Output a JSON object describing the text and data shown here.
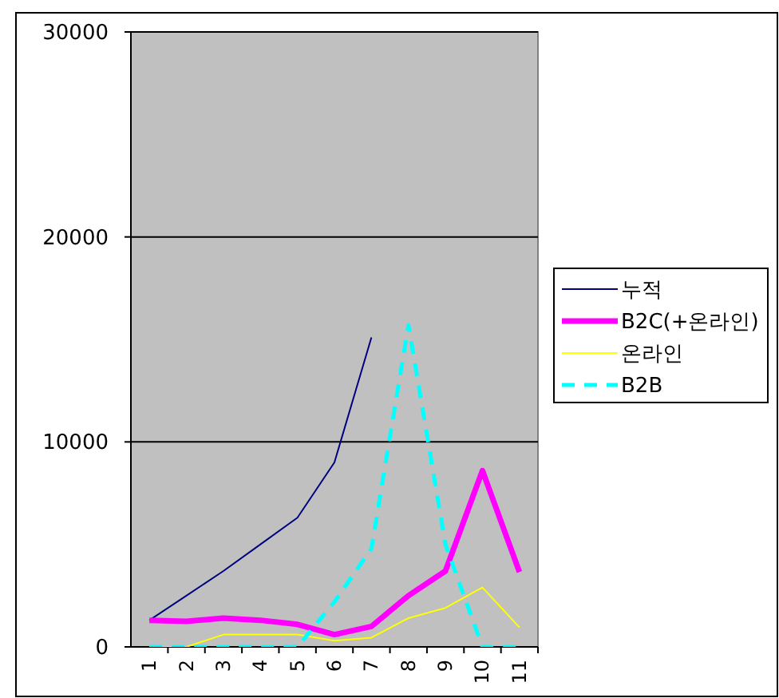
{
  "chart_data": {
    "type": "line",
    "categories": [
      "1",
      "2",
      "3",
      "4",
      "5",
      "6",
      "7",
      "8",
      "9",
      "10",
      "11"
    ],
    "series": [
      {
        "name": "누적",
        "color": "#000080",
        "values": [
          1300,
          2500,
          3700,
          5000,
          6300,
          9000,
          15100,
          null,
          null,
          null,
          null
        ]
      },
      {
        "name": "B2C(+온라인)",
        "color": "#ff00ff",
        "values": [
          1300,
          1250,
          1400,
          1300,
          1100,
          600,
          1000,
          2500,
          3700,
          8600,
          3650
        ]
      },
      {
        "name": "온라인",
        "color": "#ffff00",
        "values": [
          0,
          0,
          600,
          600,
          600,
          300,
          450,
          1400,
          1900,
          2900,
          950
        ]
      },
      {
        "name": "B2B",
        "color": "#00ffff",
        "values": [
          0,
          0,
          0,
          0,
          0,
          2200,
          4800,
          15700,
          5000,
          0,
          0
        ],
        "line_style": "dashed"
      }
    ],
    "ylim": [
      0,
      30000
    ],
    "yticks": [
      0,
      10000,
      20000,
      30000
    ],
    "grid": "y",
    "legend": "right"
  }
}
